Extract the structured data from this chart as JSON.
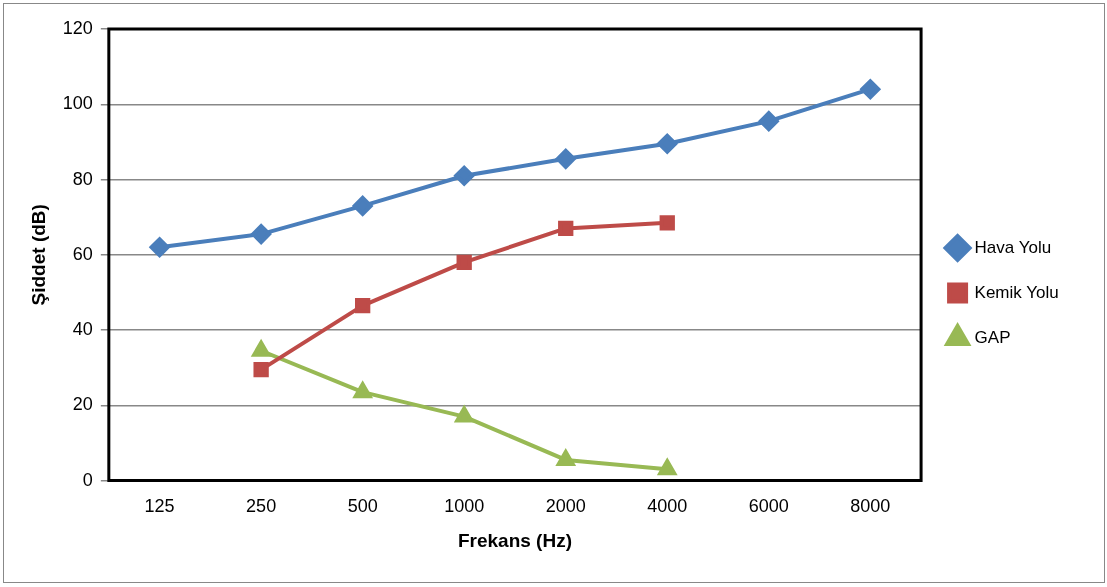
{
  "chart_data": {
    "type": "line",
    "xlabel": "Frekans (Hz)",
    "ylabel": "Şiddet (dB)",
    "categories": [
      "125",
      "250",
      "500",
      "1000",
      "2000",
      "4000",
      "6000",
      "8000"
    ],
    "series": [
      {
        "name": "Hava Yolu",
        "color": "#4a7ebb",
        "marker": "diamond",
        "values": [
          62,
          65.5,
          73,
          81,
          85.5,
          89.5,
          95.5,
          104
        ]
      },
      {
        "name": "Kemik Yolu",
        "color": "#be4b48",
        "marker": "square",
        "values": [
          null,
          29.5,
          46.5,
          58,
          67,
          68.5,
          null,
          null
        ]
      },
      {
        "name": "GAP",
        "color": "#98b954",
        "marker": "triangle",
        "values": [
          null,
          34.5,
          23.5,
          17,
          5.5,
          3,
          null,
          null
        ]
      }
    ],
    "ylim": [
      0,
      120
    ],
    "yticks": [
      0,
      20,
      40,
      60,
      80,
      100,
      120
    ],
    "grid": "y",
    "legend": "right",
    "line_style": "solid"
  }
}
